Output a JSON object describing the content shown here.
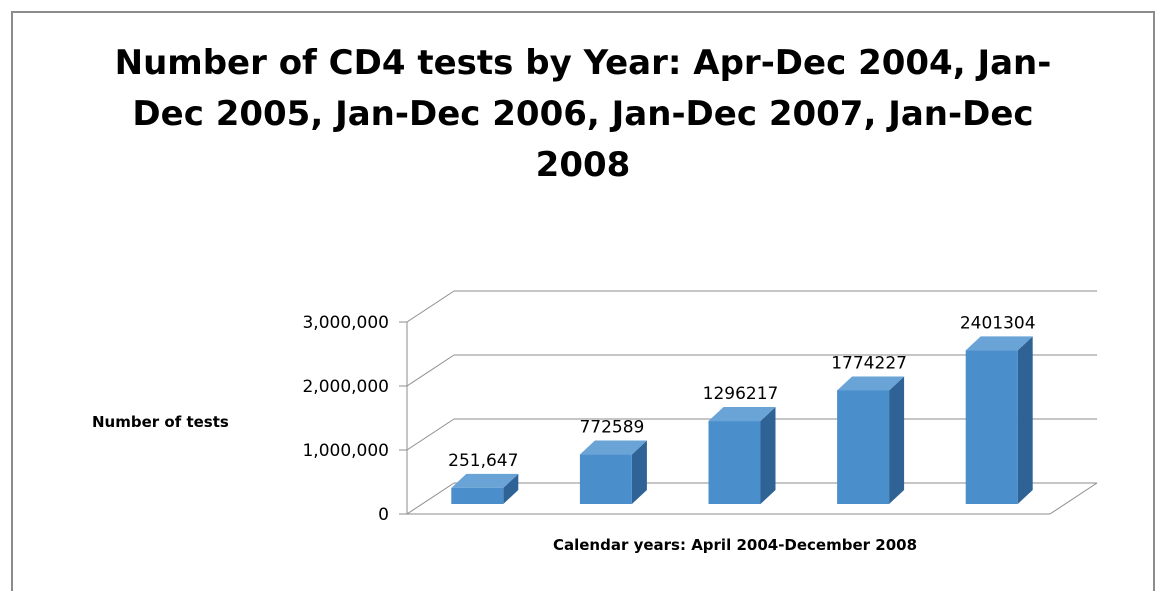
{
  "chart_data": {
    "type": "bar",
    "title_lines": [
      "Number of CD4 tests by Year: Apr-Dec 2004, Jan-",
      "Dec 2005, Jan-Dec 2006, Jan-Dec 2007, Jan-Dec",
      "2008"
    ],
    "xlabel": "Calendar years: April 2004-December 2008",
    "ylabel": "Number of tests",
    "categories": [
      "",
      "",
      "",
      "",
      ""
    ],
    "values": [
      251647,
      772589,
      1296217,
      1774227,
      2401304
    ],
    "data_labels": [
      "251,647",
      "772589",
      "1296217",
      "1774227",
      "2401304"
    ],
    "ylim": [
      0,
      3000000
    ],
    "yticks": [
      0,
      1000000,
      2000000,
      3000000
    ],
    "ytick_labels": [
      "0",
      "1,000,000",
      "2,000,000",
      "3,000,000"
    ],
    "grid": true,
    "legend": "none",
    "style": "3d-column",
    "colors": {
      "bar_front": "#4a8fcc",
      "bar_side": "#2f6395",
      "bar_top": "#6aa3d6",
      "gridline": "#8c8c8c",
      "frame": "#8c8c8c"
    }
  }
}
